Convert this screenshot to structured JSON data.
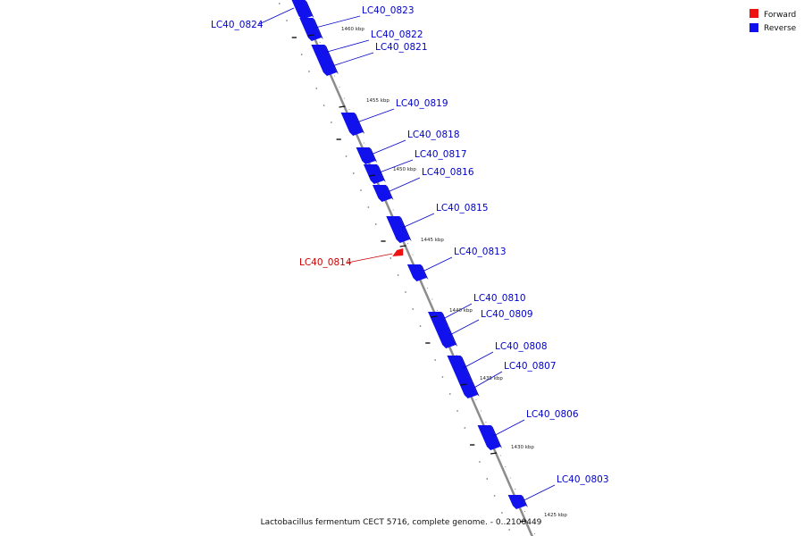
{
  "caption": "Lactobacillus fermentum CECT 5716, complete genome. - 0..2100449",
  "legend": {
    "placement": "top-right",
    "items": [
      {
        "label": "Forward",
        "color": "#ee1111"
      },
      {
        "label": "Reverse",
        "color": "#1111ee"
      }
    ]
  },
  "colors": {
    "backbone": "#8c8c8c",
    "forward_label": "#cc0000",
    "reverse_label": "#0000cc"
  },
  "genes": [
    {
      "id": "LC40_0824",
      "strand": "reverse",
      "side": "left"
    },
    {
      "id": "LC40_0823",
      "strand": "reverse",
      "side": "right"
    },
    {
      "id": "LC40_0822",
      "strand": "reverse",
      "side": "right"
    },
    {
      "id": "LC40_0821",
      "strand": "reverse",
      "side": "right"
    },
    {
      "id": "LC40_0819",
      "strand": "reverse",
      "side": "right"
    },
    {
      "id": "LC40_0818",
      "strand": "reverse",
      "side": "right"
    },
    {
      "id": "LC40_0817",
      "strand": "reverse",
      "side": "right"
    },
    {
      "id": "LC40_0816",
      "strand": "reverse",
      "side": "right"
    },
    {
      "id": "LC40_0815",
      "strand": "reverse",
      "side": "right"
    },
    {
      "id": "LC40_0814",
      "strand": "forward",
      "side": "left"
    },
    {
      "id": "LC40_0813",
      "strand": "reverse",
      "side": "right"
    },
    {
      "id": "LC40_0810",
      "strand": "reverse",
      "side": "right"
    },
    {
      "id": "LC40_0809",
      "strand": "reverse",
      "side": "right"
    },
    {
      "id": "LC40_0808",
      "strand": "reverse",
      "side": "right"
    },
    {
      "id": "LC40_0807",
      "strand": "reverse",
      "side": "right"
    },
    {
      "id": "LC40_0806",
      "strand": "reverse",
      "side": "right"
    },
    {
      "id": "LC40_0803",
      "strand": "reverse",
      "side": "right"
    }
  ],
  "kbp_marks": [
    "1460 kbp",
    "1455 kbp",
    "1450 kbp",
    "1445 kbp",
    "1440 kbp",
    "1435 kbp",
    "1430 kbp",
    "1425 kbp"
  ]
}
